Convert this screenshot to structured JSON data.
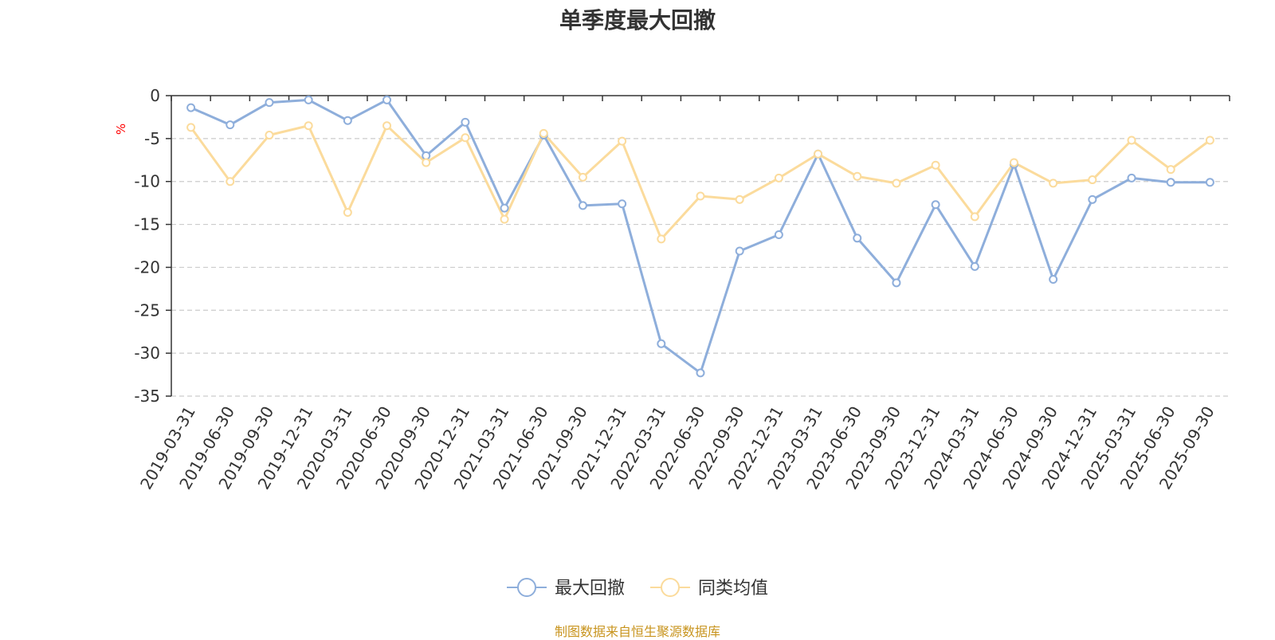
{
  "title": "单季度最大回撤",
  "source_note": "制图数据来自恒生聚源数据库",
  "colors": {
    "series_1": "#8eaedb",
    "series_2": "#fbdb9c",
    "axis": "#333333",
    "grid": "#cccccc",
    "unit": "#ff0000",
    "source": "#c8941e"
  },
  "chart_data": {
    "type": "line",
    "title": "单季度最大回撤",
    "ylabel": "%",
    "ylim": [
      -35,
      0
    ],
    "yticks": [
      0,
      -5,
      -10,
      -15,
      -20,
      -25,
      -30,
      -35
    ],
    "legend_position": "bottom",
    "categories": [
      "2019-03-31",
      "2019-06-30",
      "2019-09-30",
      "2019-12-31",
      "2020-03-31",
      "2020-06-30",
      "2020-09-30",
      "2020-12-31",
      "2021-03-31",
      "2021-06-30",
      "2021-09-30",
      "2021-12-31",
      "2022-03-31",
      "2022-06-30",
      "2022-09-30",
      "2022-12-31",
      "2023-03-31",
      "2023-06-30",
      "2023-09-30",
      "2023-12-31",
      "2024-03-31",
      "2024-06-30",
      "2024-09-30",
      "2024-12-31",
      "2025-03-31",
      "2025-06-30",
      "2025-09-30"
    ],
    "series": [
      {
        "name": "最大回撤",
        "color": "#8eaedb",
        "values": [
          -1.4,
          -3.4,
          -0.8,
          -0.5,
          -2.9,
          -0.5,
          -7.0,
          -3.1,
          -13.1,
          -4.6,
          -12.8,
          -12.6,
          -28.9,
          -32.3,
          -18.1,
          -16.2,
          -6.8,
          -16.6,
          -21.8,
          -12.7,
          -19.9,
          -8.0,
          -21.4,
          -12.1,
          -9.6,
          -10.1,
          -10.1
        ]
      },
      {
        "name": "同类均值",
        "color": "#fbdb9c",
        "values": [
          -3.7,
          -10.0,
          -4.6,
          -3.5,
          -13.6,
          -3.5,
          -7.8,
          -4.9,
          -14.4,
          -4.4,
          -9.5,
          -5.3,
          -16.7,
          -11.7,
          -12.1,
          -9.6,
          -6.8,
          -9.4,
          -10.2,
          -8.1,
          -14.1,
          -7.8,
          -10.2,
          -9.8,
          -5.2,
          -8.6,
          -5.2
        ]
      }
    ]
  }
}
